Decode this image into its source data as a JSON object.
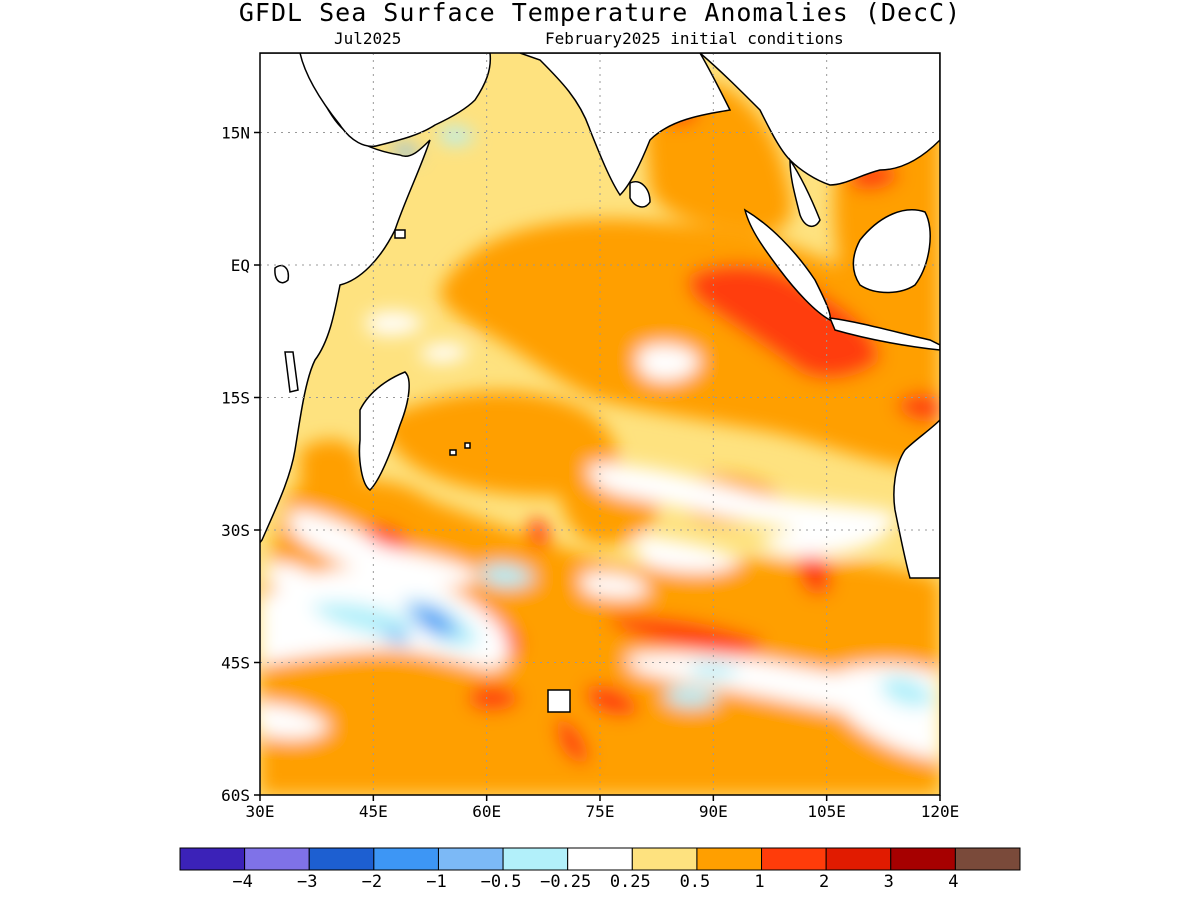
{
  "header": {
    "title": "GFDL Sea Surface Temperature Anomalies (DecC)",
    "subtitle_left": "Jul2025",
    "subtitle_right": "February2025 initial conditions"
  },
  "axes": {
    "lat_ticks": [
      "15N",
      "EQ",
      "15S",
      "30S",
      "45S",
      "60S"
    ],
    "lon_ticks": [
      "30E",
      "45E",
      "60E",
      "75E",
      "90E",
      "105E",
      "120E"
    ],
    "lat_values": [
      15,
      0,
      -15,
      -30,
      -45,
      -60
    ],
    "lon_values": [
      30,
      45,
      60,
      75,
      90,
      105,
      120
    ],
    "lat_range": [
      -60,
      24
    ],
    "lon_range": [
      30,
      120
    ],
    "grid": "dotted"
  },
  "colorbar": {
    "colors": [
      "#3b22b8",
      "#7f72e8",
      "#1d5fd1",
      "#3d96f5",
      "#7cb9f6",
      "#b2f0fa",
      "#ffffff",
      "#fee27f",
      "#ff9f00",
      "#ff3c0a",
      "#e11b00",
      "#a60000",
      "#7a4a3a"
    ],
    "labels": [
      "−4",
      "−3",
      "−2",
      "−1",
      "−0.5",
      "−0.25",
      "0.25",
      "0.5",
      "1",
      "2",
      "3",
      "4"
    ]
  },
  "legend_placement": "bottom"
}
